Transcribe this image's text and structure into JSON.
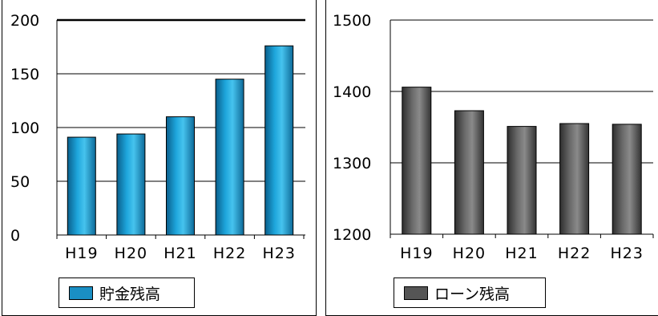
{
  "chart_data": [
    {
      "type": "bar",
      "categories": [
        "H19",
        "H20",
        "H21",
        "H22",
        "H23"
      ],
      "series": [
        {
          "name": "貯金残高",
          "values": [
            91,
            94,
            110,
            145,
            176
          ]
        }
      ],
      "ylim": [
        0,
        200
      ],
      "yticks": [
        "0",
        "50",
        "100",
        "150",
        "200"
      ],
      "grid": true,
      "legend_position": "bottom",
      "bar_color": "#1a8fc4",
      "legend": {
        "label": "貯金残高"
      }
    },
    {
      "type": "bar",
      "categories": [
        "H19",
        "H20",
        "H21",
        "H22",
        "H23"
      ],
      "series": [
        {
          "name": "ローン残高",
          "values": [
            1406,
            1373,
            1351,
            1355,
            1354
          ]
        }
      ],
      "ylim": [
        1200,
        1500
      ],
      "yticks": [
        "1200",
        "1300",
        "1400",
        "1500"
      ],
      "grid": true,
      "legend_position": "bottom",
      "bar_color": "#555555",
      "legend": {
        "label": "ローン残高"
      }
    }
  ]
}
